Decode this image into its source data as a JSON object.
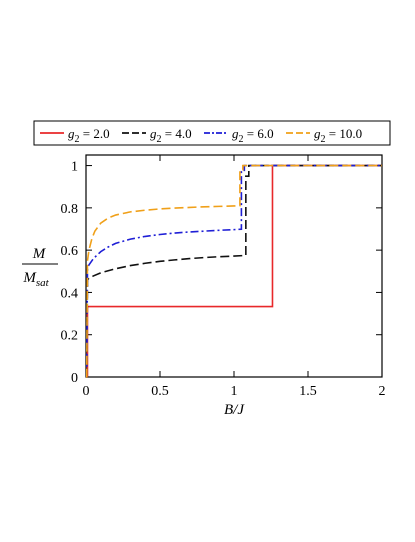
{
  "chart_data": {
    "type": "line",
    "title": "",
    "xlabel": "B/J",
    "ylabel": {
      "numerator": "M",
      "denominator": "M",
      "denominator_subscript": "sat"
    },
    "xlim": [
      0,
      2
    ],
    "ylim": [
      0,
      1.05
    ],
    "xticks": [
      0,
      0.5,
      1,
      1.5,
      2
    ],
    "xtick_labels": [
      "0",
      "0.5",
      "1",
      "1.5",
      "2"
    ],
    "yticks": [
      0,
      0.2,
      0.4,
      0.6,
      0.8,
      1
    ],
    "ytick_labels": [
      "0",
      "0.2",
      "0.4",
      "0.6",
      "0.8",
      "1"
    ],
    "grid": false,
    "legend_position": "top",
    "series": [
      {
        "name": "g2 = 2.0",
        "legend": {
          "g": "g",
          "sub": "2",
          "rest": " = 2.0"
        },
        "color": "#e8282a",
        "dash": "solid",
        "x": [
          0,
          0.005,
          0.01,
          0.01,
          0.3,
          0.6,
          0.9,
          1.2,
          1.26,
          1.26,
          1.5,
          2.0
        ],
        "y": [
          0,
          0,
          0.005,
          0.333,
          0.333,
          0.333,
          0.333,
          0.333,
          0.333,
          1.0,
          1.0,
          1.0
        ]
      },
      {
        "name": "g2 = 4.0",
        "legend": {
          "g": "g",
          "sub": "2",
          "rest": " = 4.0"
        },
        "color": "#111111",
        "dash": "long-dash",
        "x": [
          0,
          0.005,
          0.01,
          0.02,
          0.05,
          0.1,
          0.2,
          0.3,
          0.4,
          0.5,
          0.6,
          0.7,
          0.8,
          0.9,
          1.0,
          1.08,
          1.08,
          1.1,
          1.1,
          1.3,
          2.0
        ],
        "y": [
          0,
          0,
          0.46,
          0.467,
          0.478,
          0.493,
          0.512,
          0.527,
          0.538,
          0.547,
          0.554,
          0.56,
          0.565,
          0.569,
          0.572,
          0.575,
          0.95,
          0.95,
          1.0,
          1.0,
          1.0
        ]
      },
      {
        "name": "g2 = 6.0",
        "legend": {
          "g": "g",
          "sub": "2",
          "rest": " = 6.0"
        },
        "color": "#1f1fd6",
        "dash": "dash-dot",
        "x": [
          0,
          0.005,
          0.01,
          0.02,
          0.05,
          0.1,
          0.15,
          0.2,
          0.3,
          0.4,
          0.5,
          0.6,
          0.7,
          0.8,
          0.9,
          1.0,
          1.05,
          1.05,
          1.07,
          1.07,
          1.3,
          2.0
        ],
        "y": [
          0,
          0,
          0.515,
          0.53,
          0.56,
          0.593,
          0.615,
          0.632,
          0.652,
          0.665,
          0.674,
          0.681,
          0.686,
          0.69,
          0.694,
          0.697,
          0.699,
          0.97,
          0.97,
          1.0,
          1.0,
          1.0
        ]
      },
      {
        "name": "g2 = 10.0",
        "legend": {
          "g": "g",
          "sub": "2",
          "rest": " = 10.0"
        },
        "color": "#f0a019",
        "dash": "long-dash",
        "x": [
          0,
          0.005,
          0.01,
          0.02,
          0.04,
          0.06,
          0.1,
          0.15,
          0.2,
          0.3,
          0.4,
          0.5,
          0.6,
          0.7,
          0.8,
          0.9,
          1.0,
          1.04,
          1.04,
          1.06,
          1.06,
          1.3,
          2.0
        ],
        "y": [
          0,
          0,
          0.55,
          0.6,
          0.655,
          0.69,
          0.728,
          0.752,
          0.766,
          0.781,
          0.789,
          0.795,
          0.799,
          0.802,
          0.805,
          0.807,
          0.809,
          0.81,
          0.98,
          0.98,
          1.0,
          1.0,
          1.0
        ]
      }
    ]
  }
}
